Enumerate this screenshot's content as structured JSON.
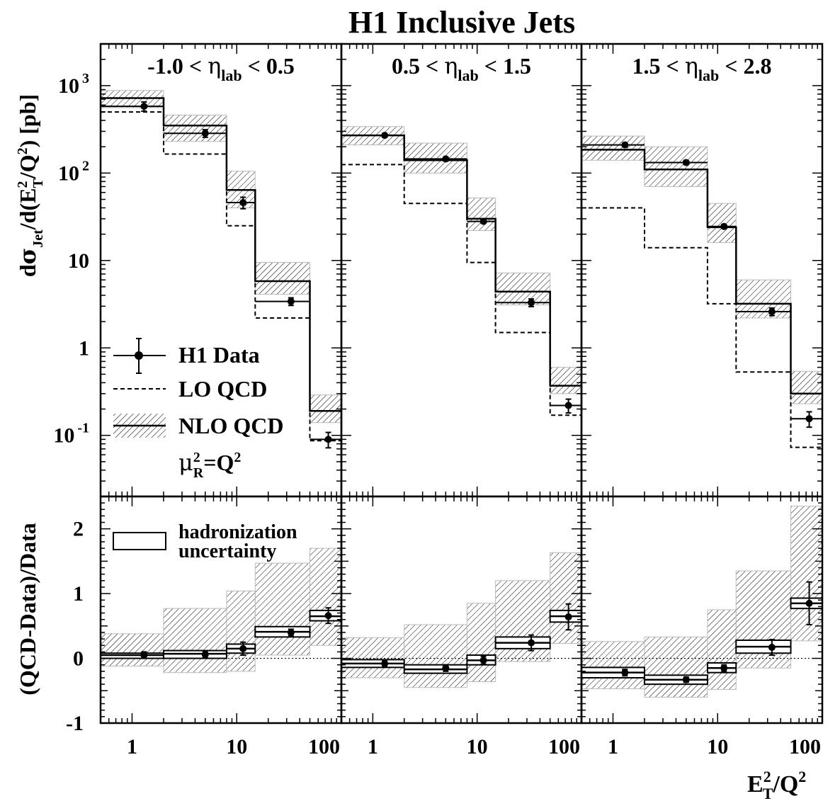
{
  "title": "H1 Inclusive Jets",
  "y_label_top": "dσ_Jet/d(E_T^2/Q^2) [pb]",
  "y_label_bottom": "(QCD-Data)/Data",
  "x_label": "E_T^2/Q^2",
  "legend": {
    "data": "H1 Data",
    "lo": "LO QCD",
    "nlo": "NLO QCD",
    "scale": "μ_R^2=Q^2",
    "hadronization_line1": "hadronization",
    "hadronization_line2": "uncertainty"
  },
  "chart_data": {
    "type": "line",
    "x_scale": "log",
    "x_range": [
      0.5,
      100
    ],
    "x_ticks": [
      "1",
      "10",
      "100"
    ],
    "bin_edges": [
      0.5,
      2,
      8,
      15,
      50,
      100
    ],
    "top": {
      "y_scale": "log",
      "y_range": [
        0.02,
        3000
      ],
      "y_ticks": [
        "10 -1",
        "1",
        "10",
        "10 2",
        "10 3"
      ]
    },
    "bottom": {
      "y_range": [
        -1,
        2.5
      ],
      "y_ticks": [
        "-1",
        "0",
        "1",
        "2"
      ]
    },
    "panels": [
      {
        "eta_label": "-1.0 < η_lab < 0.5",
        "data_x": [
          1.3,
          5,
          11.5,
          33,
          75
        ],
        "data_y": [
          580,
          285,
          46,
          3.4,
          0.09
        ],
        "data_err": [
          0.12,
          0.1,
          0.15,
          0.1,
          0.2
        ],
        "nlo": [
          720,
          350,
          64,
          5.8,
          0.19
        ],
        "nlo_band_low": [
          560,
          230,
          40,
          4.1,
          0.14
        ],
        "nlo_band_high": [
          880,
          460,
          105,
          9.5,
          0.29
        ],
        "lo": [
          500,
          165,
          25,
          2.2,
          0.087
        ],
        "ratio": {
          "data_y": [
            0.05,
            0.06,
            0.15,
            0.4,
            0.66
          ],
          "data_err": [
            0.05,
            0.05,
            0.1,
            0.05,
            0.12
          ],
          "nlo": [
            0.05,
            0.07,
            0.15,
            0.41,
            0.65
          ],
          "had_low": [
            0.0,
            0.0,
            0.08,
            0.33,
            0.58
          ],
          "had_high": [
            0.08,
            0.12,
            0.22,
            0.49,
            0.74
          ],
          "band_low": [
            -0.12,
            -0.22,
            -0.2,
            0.05,
            0.2
          ],
          "band_high": [
            0.38,
            0.77,
            1.04,
            1.47,
            1.7
          ]
        }
      },
      {
        "eta_label": "0.5 < η_lab < 1.5",
        "data_x": [
          1.3,
          5,
          11.5,
          33,
          75
        ],
        "data_y": [
          270,
          145,
          28,
          3.3,
          0.22
        ],
        "data_err": [
          0.05,
          0.05,
          0.05,
          0.1,
          0.18
        ],
        "nlo": [
          270,
          140,
          30,
          4.4,
          0.37
        ],
        "nlo_band_low": [
          210,
          100,
          22,
          3.1,
          0.3
        ],
        "nlo_band_high": [
          340,
          220,
          52,
          7.2,
          0.6
        ],
        "lo": [
          125,
          45,
          9.5,
          1.5,
          0.17
        ],
        "ratio": {
          "data_y": [
            -0.08,
            -0.15,
            -0.03,
            0.24,
            0.64
          ],
          "data_err": [
            0.05,
            0.05,
            0.06,
            0.12,
            0.2
          ],
          "nlo": [
            -0.08,
            -0.17,
            -0.03,
            0.24,
            0.65
          ],
          "had_low": [
            -0.14,
            -0.23,
            -0.1,
            0.15,
            0.56
          ],
          "had_high": [
            -0.02,
            -0.1,
            0.05,
            0.33,
            0.74
          ],
          "band_low": [
            -0.3,
            -0.45,
            -0.36,
            -0.05,
            0.23
          ],
          "band_high": [
            0.32,
            0.52,
            0.85,
            1.2,
            1.63
          ]
        }
      },
      {
        "eta_label": "1.5 < η_lab < 2.8",
        "data_x": [
          1.3,
          5,
          11.5,
          33,
          75
        ],
        "data_y": [
          210,
          132,
          24.5,
          2.6,
          0.155
        ],
        "data_err": [
          0.05,
          0.05,
          0.05,
          0.1,
          0.2
        ],
        "nlo": [
          185,
          110,
          24,
          3.2,
          0.3
        ],
        "nlo_band_low": [
          140,
          70,
          16,
          2.2,
          0.23
        ],
        "nlo_band_high": [
          265,
          200,
          45,
          6.0,
          0.54
        ],
        "lo": [
          40,
          14,
          3.2,
          0.53,
          0.073
        ],
        "ratio": {
          "data_y": [
            -0.22,
            -0.33,
            -0.15,
            0.17,
            0.85
          ],
          "data_err": [
            0.05,
            0.04,
            0.05,
            0.12,
            0.33
          ],
          "nlo": [
            -0.22,
            -0.33,
            -0.15,
            0.18,
            0.85
          ],
          "had_low": [
            -0.3,
            -0.4,
            -0.22,
            0.08,
            0.77
          ],
          "had_high": [
            -0.14,
            -0.26,
            -0.07,
            0.28,
            0.93
          ],
          "band_low": [
            -0.47,
            -0.6,
            -0.48,
            -0.15,
            0.27
          ],
          "band_high": [
            0.26,
            0.33,
            0.75,
            1.35,
            2.35
          ]
        }
      }
    ]
  }
}
